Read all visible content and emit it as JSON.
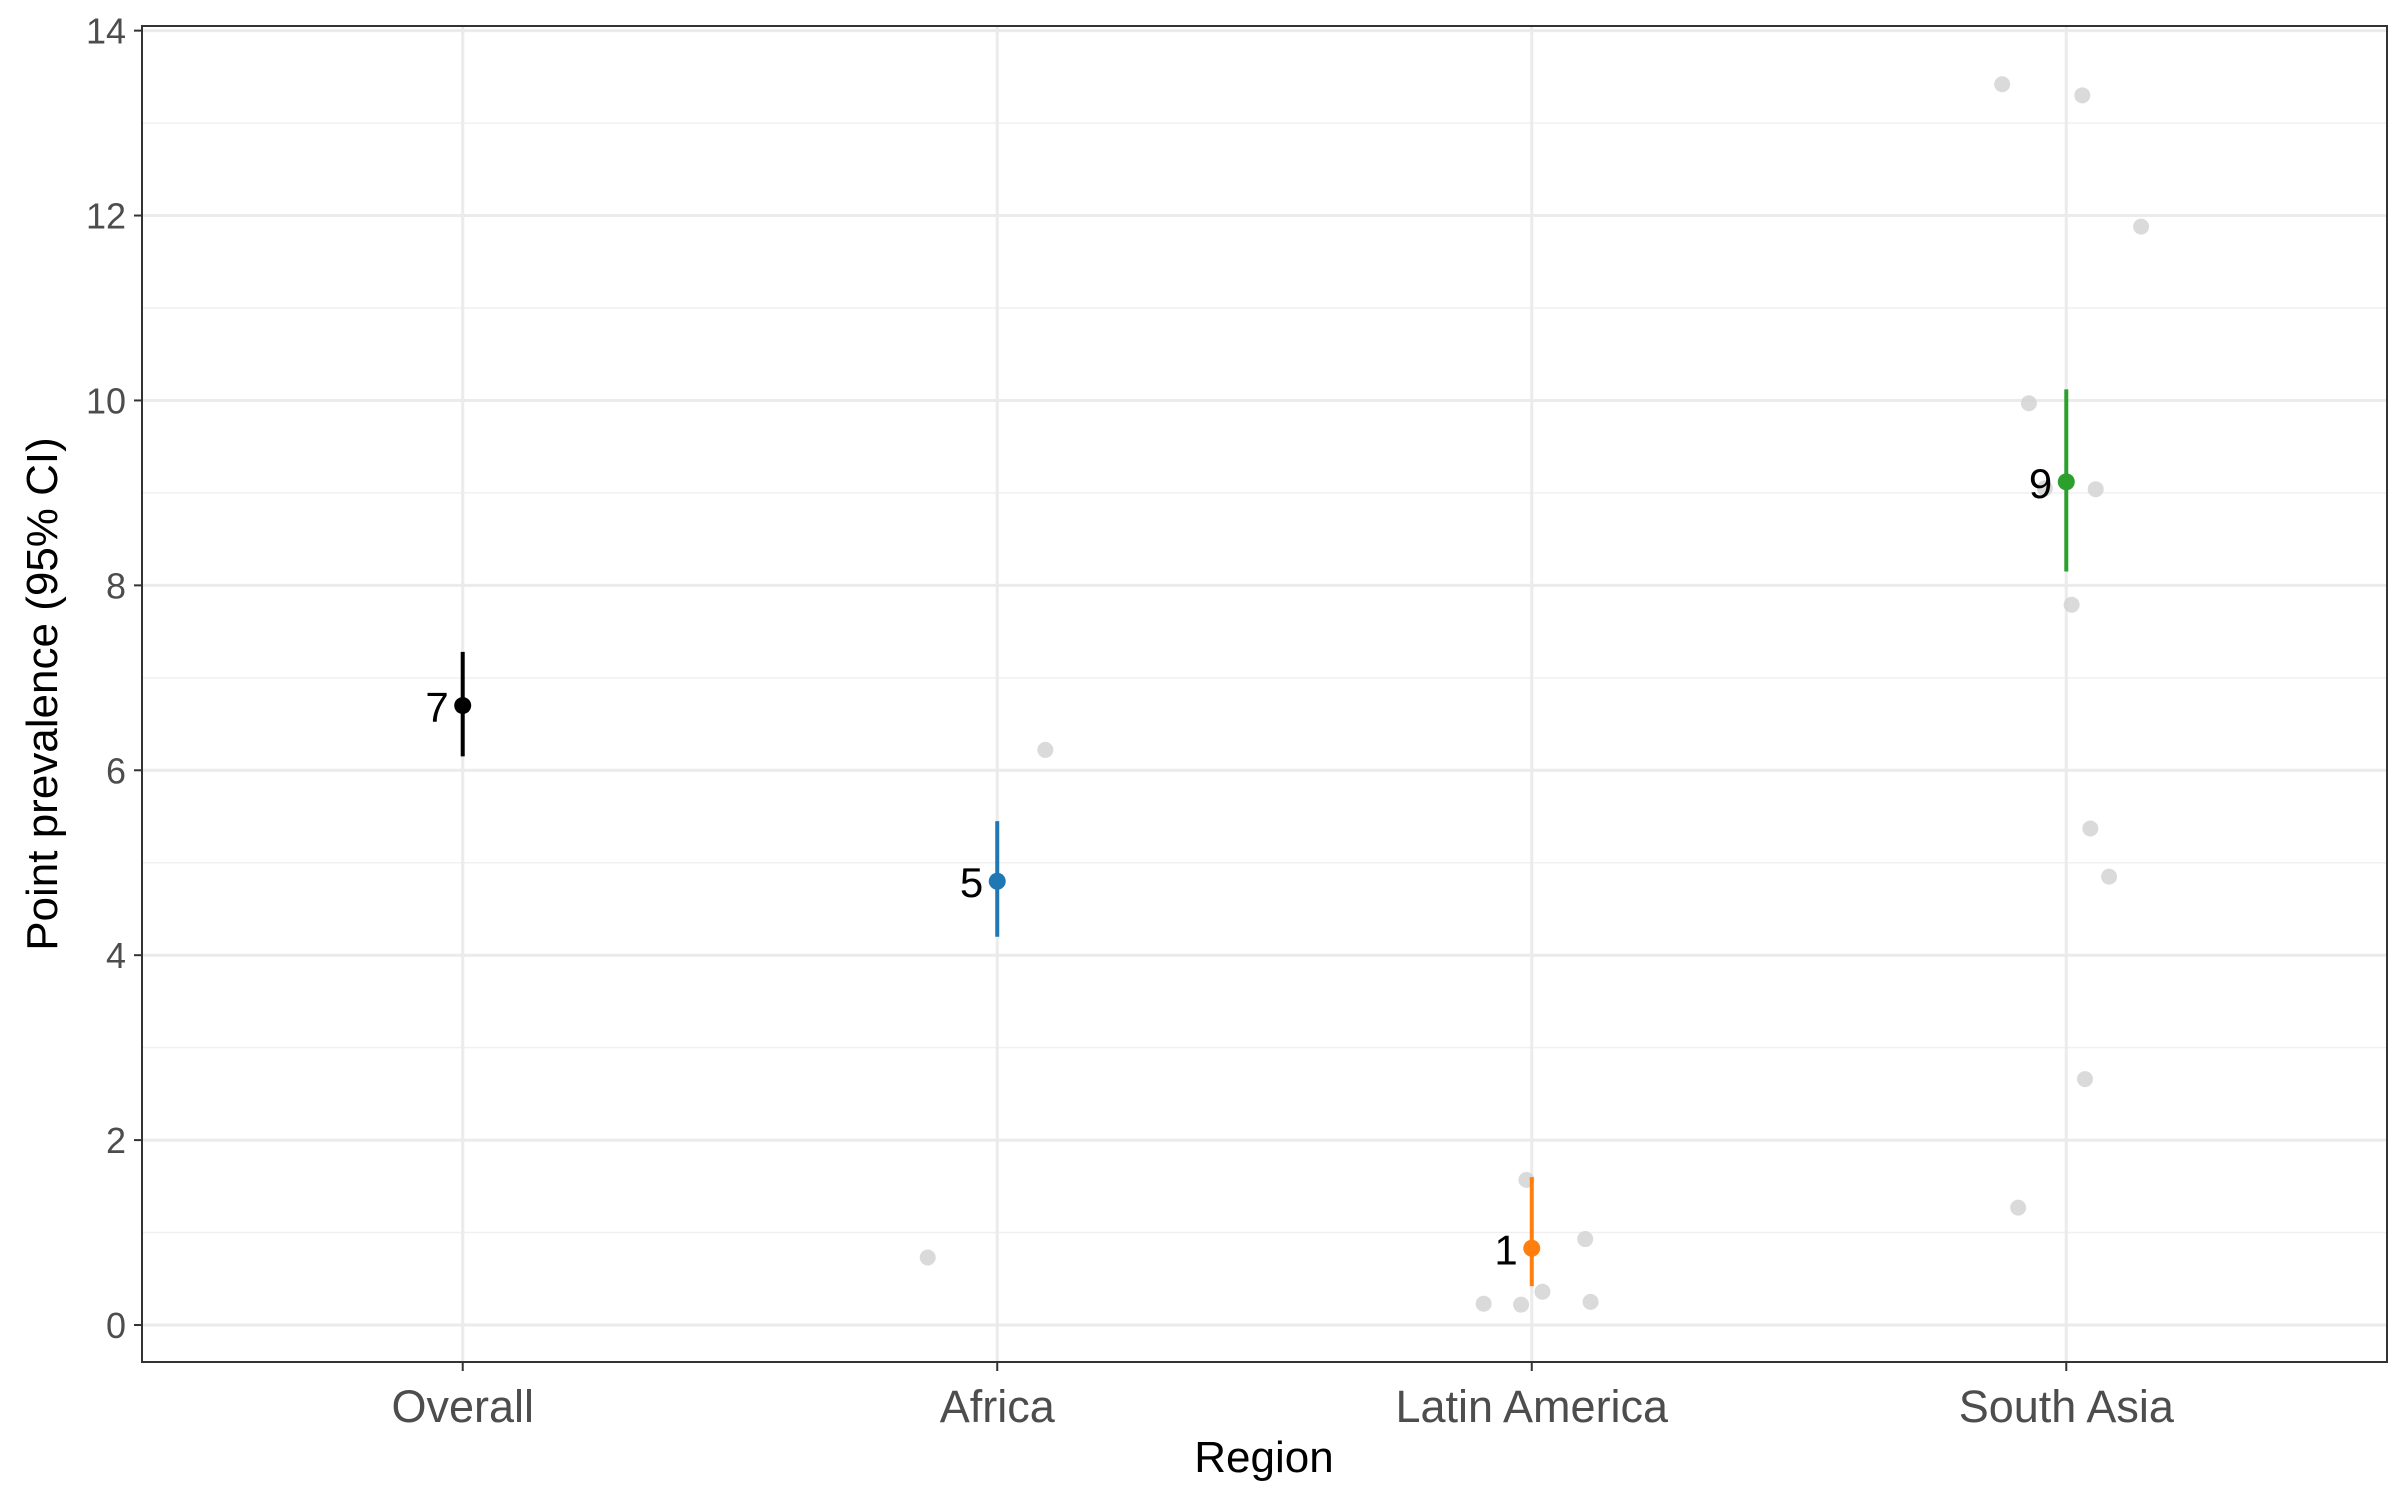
{
  "chart_data": {
    "type": "scatter",
    "xlabel": "Region",
    "ylabel": "Point prevalence (95% CI)",
    "categories": [
      "Overall",
      "Africa",
      "Latin America",
      "South Asia"
    ],
    "ylim": [
      -0.4,
      14.05
    ],
    "y_ticks": [
      "0",
      "2",
      "4",
      "6",
      "8",
      "10",
      "12",
      "14"
    ],
    "grid": true,
    "estimates": [
      {
        "category": "Overall",
        "value": 6.7,
        "lower": 6.15,
        "upper": 7.28,
        "label": "7",
        "color": "#000000"
      },
      {
        "category": "Africa",
        "value": 4.8,
        "lower": 4.2,
        "upper": 5.45,
        "label": "5",
        "color": "#1f77b4"
      },
      {
        "category": "Latin America",
        "value": 0.83,
        "lower": 0.42,
        "upper": 1.6,
        "label": "1",
        "color": "#ff7f0e"
      },
      {
        "category": "South Asia",
        "value": 9.12,
        "lower": 8.15,
        "upper": 10.12,
        "label": "9",
        "color": "#2ca02c"
      }
    ],
    "study_points": [
      {
        "category": "Africa",
        "jitter": -0.13,
        "value": 0.73
      },
      {
        "category": "Africa",
        "jitter": 0.09,
        "value": 6.22
      },
      {
        "category": "Latin America",
        "jitter": -0.09,
        "value": 0.23
      },
      {
        "category": "Latin America",
        "jitter": -0.02,
        "value": 0.22
      },
      {
        "category": "Latin America",
        "jitter": -0.01,
        "value": 1.57
      },
      {
        "category": "Latin America",
        "jitter": 0.02,
        "value": 0.36
      },
      {
        "category": "Latin America",
        "jitter": 0.1,
        "value": 0.93
      },
      {
        "category": "Latin America",
        "jitter": 0.11,
        "value": 0.25
      },
      {
        "category": "South Asia",
        "jitter": -0.12,
        "value": 13.42
      },
      {
        "category": "South Asia",
        "jitter": 0.03,
        "value": 13.3
      },
      {
        "category": "South Asia",
        "jitter": 0.14,
        "value": 11.88
      },
      {
        "category": "South Asia",
        "jitter": -0.07,
        "value": 9.97
      },
      {
        "category": "South Asia",
        "jitter": -0.04,
        "value": 9.05
      },
      {
        "category": "South Asia",
        "jitter": 0.055,
        "value": 9.04
      },
      {
        "category": "South Asia",
        "jitter": 0.01,
        "value": 7.79
      },
      {
        "category": "South Asia",
        "jitter": 0.045,
        "value": 5.37
      },
      {
        "category": "South Asia",
        "jitter": 0.08,
        "value": 4.85
      },
      {
        "category": "South Asia",
        "jitter": 0.035,
        "value": 2.66
      },
      {
        "category": "South Asia",
        "jitter": -0.09,
        "value": 1.27
      }
    ],
    "point_color": "#d3d3d3"
  }
}
